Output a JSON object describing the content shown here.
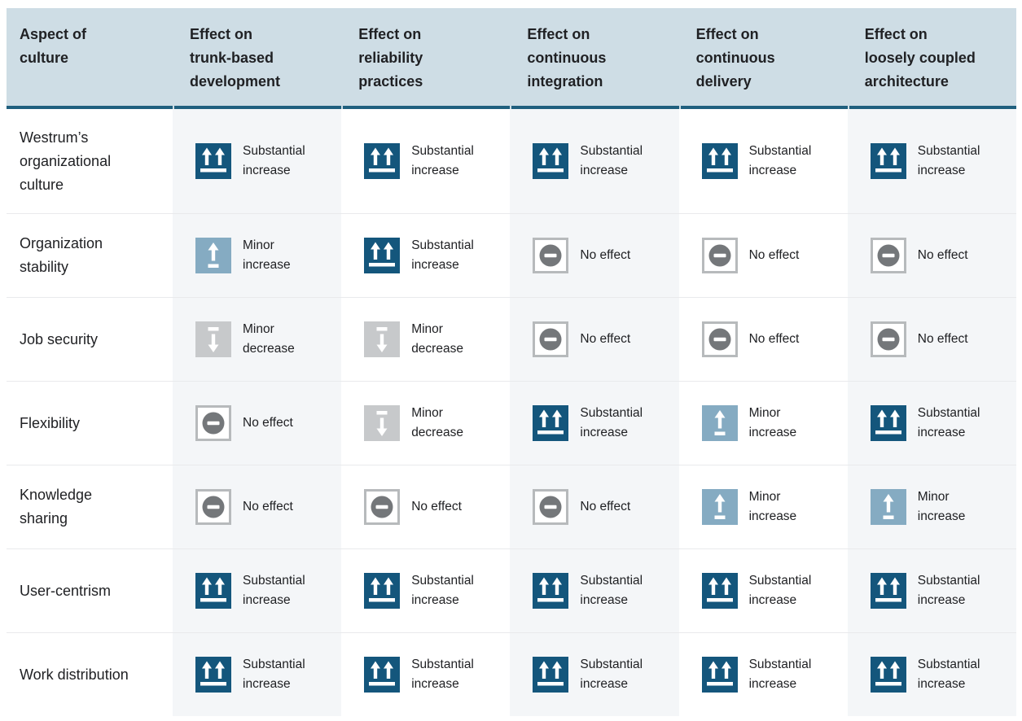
{
  "theme": {
    "header_bg": "#cedde5",
    "header_border": "#1f5f7e",
    "substantial_bg": "#14567c",
    "minor_increase_bg": "#85abc2",
    "minor_decrease_bg": "#c7c9cb",
    "no_effect_border": "#b7babc",
    "no_effect_circle": "#74777a",
    "col_tint": "#f4f6f8",
    "separator": "#e9eaec",
    "text": "#202124"
  },
  "table": {
    "columns": [
      {
        "id": "aspect-of-culture",
        "label": "Aspect of\nculture"
      },
      {
        "id": "trunk-based-development",
        "label": "Effect on\ntrunk-based\ndevelopment"
      },
      {
        "id": "reliability-practices",
        "label": "Effect on\nreliability\npractices"
      },
      {
        "id": "continuous-integration",
        "label": "Effect on\ncontinuous\nintegration"
      },
      {
        "id": "continuous-delivery",
        "label": "Effect on\ncontinuous\ndelivery"
      },
      {
        "id": "loosely-coupled-architecture",
        "label": "Effect on\nloosely coupled\narchitecture"
      }
    ],
    "effect_labels": {
      "substantial-increase": "Substantial\nincrease",
      "minor-increase": "Minor\nincrease",
      "minor-decrease": "Minor\ndecrease",
      "no-effect": "No effect"
    },
    "rows": [
      {
        "aspect": "Westrum’s\norganizational\nculture",
        "effects": [
          "substantial-increase",
          "substantial-increase",
          "substantial-increase",
          "substantial-increase",
          "substantial-increase"
        ]
      },
      {
        "aspect": "Organization\nstability",
        "effects": [
          "minor-increase",
          "substantial-increase",
          "no-effect",
          "no-effect",
          "no-effect"
        ]
      },
      {
        "aspect": "Job security",
        "effects": [
          "minor-decrease",
          "minor-decrease",
          "no-effect",
          "no-effect",
          "no-effect"
        ]
      },
      {
        "aspect": "Flexibility",
        "effects": [
          "no-effect",
          "minor-decrease",
          "substantial-increase",
          "minor-increase",
          "substantial-increase"
        ]
      },
      {
        "aspect": "Knowledge\nsharing",
        "effects": [
          "no-effect",
          "no-effect",
          "no-effect",
          "minor-increase",
          "minor-increase"
        ]
      },
      {
        "aspect": "User-centrism",
        "effects": [
          "substantial-increase",
          "substantial-increase",
          "substantial-increase",
          "substantial-increase",
          "substantial-increase"
        ]
      },
      {
        "aspect": "Work distribution",
        "effects": [
          "substantial-increase",
          "substantial-increase",
          "substantial-increase",
          "substantial-increase",
          "substantial-increase"
        ]
      }
    ]
  },
  "chart_data": {
    "type": "table",
    "columns": [
      "Aspect of culture",
      "Effect on trunk-based development",
      "Effect on reliability practices",
      "Effect on continuous integration",
      "Effect on continuous delivery",
      "Effect on loosely coupled architecture"
    ],
    "rows": [
      [
        "Westrum’s organizational culture",
        "Substantial increase",
        "Substantial increase",
        "Substantial increase",
        "Substantial increase",
        "Substantial increase"
      ],
      [
        "Organization stability",
        "Minor increase",
        "Substantial increase",
        "No effect",
        "No effect",
        "No effect"
      ],
      [
        "Job security",
        "Minor decrease",
        "Minor decrease",
        "No effect",
        "No effect",
        "No effect"
      ],
      [
        "Flexibility",
        "No effect",
        "Minor decrease",
        "Substantial increase",
        "Minor increase",
        "Substantial increase"
      ],
      [
        "Knowledge sharing",
        "No effect",
        "No effect",
        "No effect",
        "Minor increase",
        "Minor increase"
      ],
      [
        "User-centrism",
        "Substantial increase",
        "Substantial increase",
        "Substantial increase",
        "Substantial increase",
        "Substantial increase"
      ],
      [
        "Work distribution",
        "Substantial increase",
        "Substantial increase",
        "Substantial increase",
        "Substantial increase",
        "Substantial increase"
      ]
    ],
    "legend": {
      "substantial-increase": "dark blue square, two up arrows over bar",
      "minor-increase": "light blue square, one up arrow over short bar",
      "minor-decrease": "gray square, down arrow under short bar",
      "no-effect": "outlined square, gray circle with minus"
    }
  }
}
